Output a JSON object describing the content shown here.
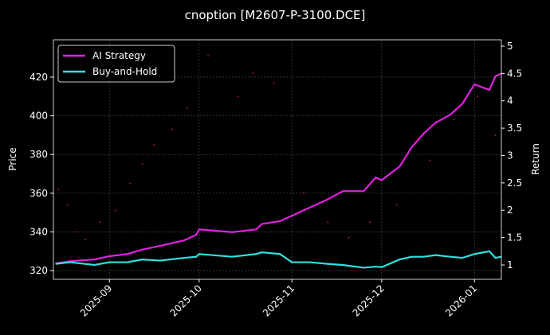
{
  "chart_data": {
    "type": "line",
    "title": "cnoption [M2607-P-3100.DCE]",
    "ylabel": "Price",
    "y2label": "Return",
    "xlim": [
      12.3,
      162
    ],
    "xticks": [
      {
        "value": 31,
        "label": "2025-09"
      },
      {
        "value": 61,
        "label": "2025-10"
      },
      {
        "value": 92,
        "label": "2025-11"
      },
      {
        "value": 122,
        "label": "2025-12"
      },
      {
        "value": 153,
        "label": "2026-01"
      }
    ],
    "ylim": [
      315.5,
      439.3
    ],
    "yticks": [
      320,
      340,
      360,
      380,
      400,
      420
    ],
    "y2lim": [
      0.738,
      5.116
    ],
    "y2ticks": [
      1.0,
      1.5,
      2.0,
      2.5,
      3.0,
      3.5,
      4.0,
      4.5,
      5.0
    ],
    "grid": true,
    "legend": "upper left",
    "x": [
      13,
      18,
      26,
      31,
      37,
      42,
      48,
      56,
      60,
      61,
      72,
      80,
      82,
      88,
      92,
      98,
      104,
      109,
      116,
      120,
      122,
      128,
      132,
      136,
      140,
      145,
      149,
      153,
      158,
      160,
      162
    ],
    "series": [
      {
        "name": "AI Strategy",
        "color": "#e020e0",
        "axis": "y2",
        "values": [
          1.03,
          1.07,
          1.1,
          1.16,
          1.2,
          1.28,
          1.35,
          1.45,
          1.55,
          1.65,
          1.6,
          1.65,
          1.75,
          1.8,
          1.9,
          2.05,
          2.2,
          2.35,
          2.35,
          2.6,
          2.55,
          2.8,
          3.15,
          3.4,
          3.6,
          3.75,
          3.95,
          4.3,
          4.2,
          4.45,
          4.5
        ]
      },
      {
        "name": "Buy-and-Hold",
        "color": "#30e0e0",
        "axis": "y2",
        "values": [
          1.02,
          1.05,
          1.0,
          1.05,
          1.05,
          1.1,
          1.08,
          1.13,
          1.15,
          1.2,
          1.15,
          1.2,
          1.23,
          1.2,
          1.05,
          1.05,
          1.02,
          1.0,
          0.95,
          0.97,
          0.96,
          1.1,
          1.15,
          1.15,
          1.18,
          1.15,
          1.13,
          1.2,
          1.25,
          1.13,
          1.15
        ]
      }
    ],
    "price_points": {
      "color": "#ff2020",
      "x": [
        14,
        17,
        20,
        23,
        28,
        33,
        38,
        42,
        46,
        52,
        57,
        64,
        74,
        79,
        86,
        96,
        104,
        111,
        118,
        127,
        138,
        146,
        154,
        160
      ],
      "values": [
        362,
        354,
        340,
        336,
        345,
        351,
        365,
        375,
        385,
        393,
        404,
        431,
        410,
        422,
        417,
        360,
        345,
        337,
        345,
        354,
        377,
        398,
        410,
        390
      ]
    }
  }
}
